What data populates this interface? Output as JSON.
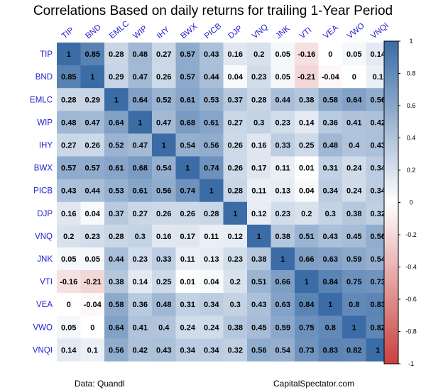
{
  "chart_data": {
    "type": "heatmap",
    "title": "Correlations Based on daily returns for trailing 1-Year Period",
    "labels": [
      "TIP",
      "BND",
      "EMLC",
      "WIP",
      "IHY",
      "BWX",
      "PICB",
      "DJP",
      "VNQ",
      "JNK",
      "VTI",
      "VEA",
      "VWO",
      "VNQI"
    ],
    "matrix": [
      [
        1,
        0.85,
        0.28,
        0.48,
        0.27,
        0.57,
        0.43,
        0.16,
        0.2,
        0.05,
        -0.16,
        0,
        0.05,
        0.14
      ],
      [
        0.85,
        1,
        0.29,
        0.47,
        0.26,
        0.57,
        0.44,
        0.04,
        0.23,
        0.05,
        -0.21,
        -0.04,
        0,
        0.1
      ],
      [
        0.28,
        0.29,
        1,
        0.64,
        0.52,
        0.61,
        0.53,
        0.37,
        0.28,
        0.44,
        0.38,
        0.58,
        0.64,
        0.56
      ],
      [
        0.48,
        0.47,
        0.64,
        1,
        0.47,
        0.68,
        0.61,
        0.27,
        0.3,
        0.23,
        0.14,
        0.36,
        0.41,
        0.42
      ],
      [
        0.27,
        0.26,
        0.52,
        0.47,
        1,
        0.54,
        0.56,
        0.26,
        0.16,
        0.33,
        0.25,
        0.48,
        0.4,
        0.43
      ],
      [
        0.57,
        0.57,
        0.61,
        0.68,
        0.54,
        1,
        0.74,
        0.26,
        0.17,
        0.11,
        0.01,
        0.31,
        0.24,
        0.34
      ],
      [
        0.43,
        0.44,
        0.53,
        0.61,
        0.56,
        0.74,
        1,
        0.28,
        0.11,
        0.13,
        0.04,
        0.34,
        0.24,
        0.34
      ],
      [
        0.16,
        0.04,
        0.37,
        0.27,
        0.26,
        0.26,
        0.28,
        1,
        0.12,
        0.23,
        0.2,
        0.3,
        0.38,
        0.32
      ],
      [
        0.2,
        0.23,
        0.28,
        0.3,
        0.16,
        0.17,
        0.11,
        0.12,
        1,
        0.38,
        0.51,
        0.43,
        0.45,
        0.56
      ],
      [
        0.05,
        0.05,
        0.44,
        0.23,
        0.33,
        0.11,
        0.13,
        0.23,
        0.38,
        1,
        0.66,
        0.63,
        0.59,
        0.54
      ],
      [
        -0.16,
        -0.21,
        0.38,
        0.14,
        0.25,
        0.01,
        0.04,
        0.2,
        0.51,
        0.66,
        1,
        0.84,
        0.75,
        0.73
      ],
      [
        0,
        -0.04,
        0.58,
        0.36,
        0.48,
        0.31,
        0.34,
        0.3,
        0.43,
        0.63,
        0.84,
        1,
        0.8,
        0.83
      ],
      [
        0.05,
        0,
        0.64,
        0.41,
        0.4,
        0.24,
        0.24,
        0.38,
        0.45,
        0.59,
        0.75,
        0.8,
        1,
        0.82
      ],
      [
        0.14,
        0.1,
        0.56,
        0.42,
        0.43,
        0.34,
        0.34,
        0.32,
        0.56,
        0.54,
        0.73,
        0.83,
        0.82,
        1
      ]
    ],
    "colorbar_range": [
      -1,
      1
    ],
    "colorbar_ticks": [
      1,
      0.8,
      0.6,
      0.4,
      0.2,
      0,
      -0.2,
      -0.4,
      -0.6,
      -0.8,
      -1
    ],
    "colors": {
      "low": "#c8413f",
      "mid": "#ffffff",
      "high": "#3b6ca6",
      "label_text": "#1f1fd0"
    }
  },
  "footer": {
    "source_left": "Data: Quandl",
    "source_right": "CapitalSpectator.com"
  }
}
